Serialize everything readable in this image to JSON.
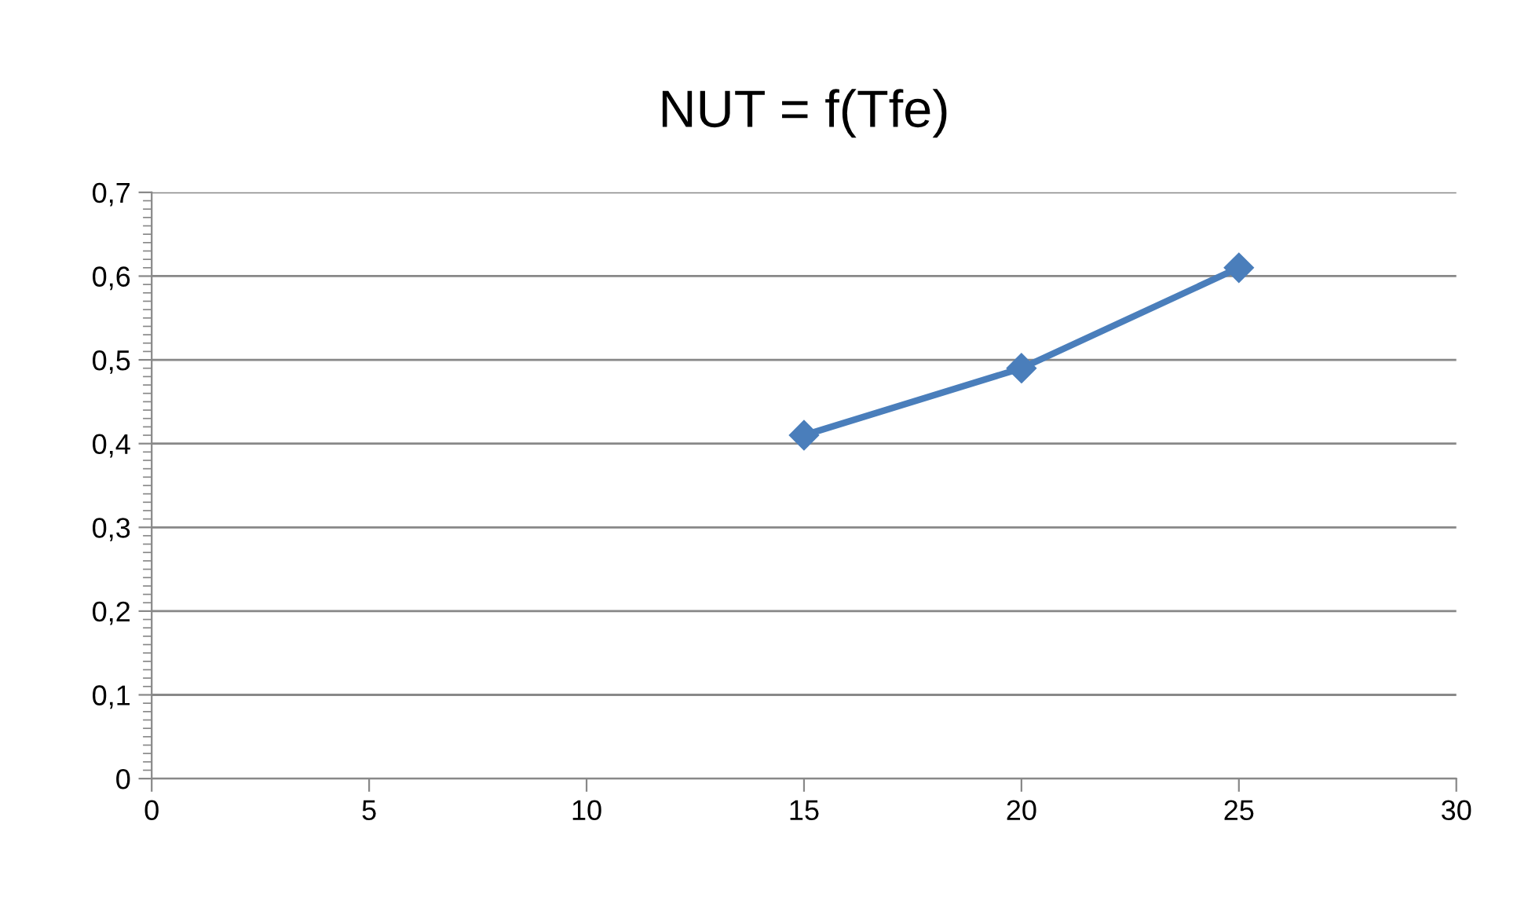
{
  "chart_data": {
    "type": "line",
    "title": "NUT = f(Tfe)",
    "x": [
      15,
      20,
      25
    ],
    "series": [
      {
        "color": "#4a7ebb",
        "values": [
          0.41,
          0.49,
          0.61
        ]
      }
    ],
    "xlim": [
      0,
      30
    ],
    "xticks": [
      0,
      5,
      10,
      15,
      20,
      25,
      30
    ],
    "ylim": [
      0,
      0.7
    ],
    "yticks": [
      {
        "value": 0,
        "label": "0"
      },
      {
        "value": 0.1,
        "label": "0,1"
      },
      {
        "value": 0.2,
        "label": "0,2"
      },
      {
        "value": 0.3,
        "label": "0,3"
      },
      {
        "value": 0.4,
        "label": "0,4"
      },
      {
        "value": 0.5,
        "label": "0,5"
      },
      {
        "value": 0.6,
        "label": "0,6"
      },
      {
        "value": 0.7,
        "label": "0,7"
      }
    ],
    "grid": "y",
    "marker": "diamond",
    "line_style": "solid",
    "legend": false
  }
}
